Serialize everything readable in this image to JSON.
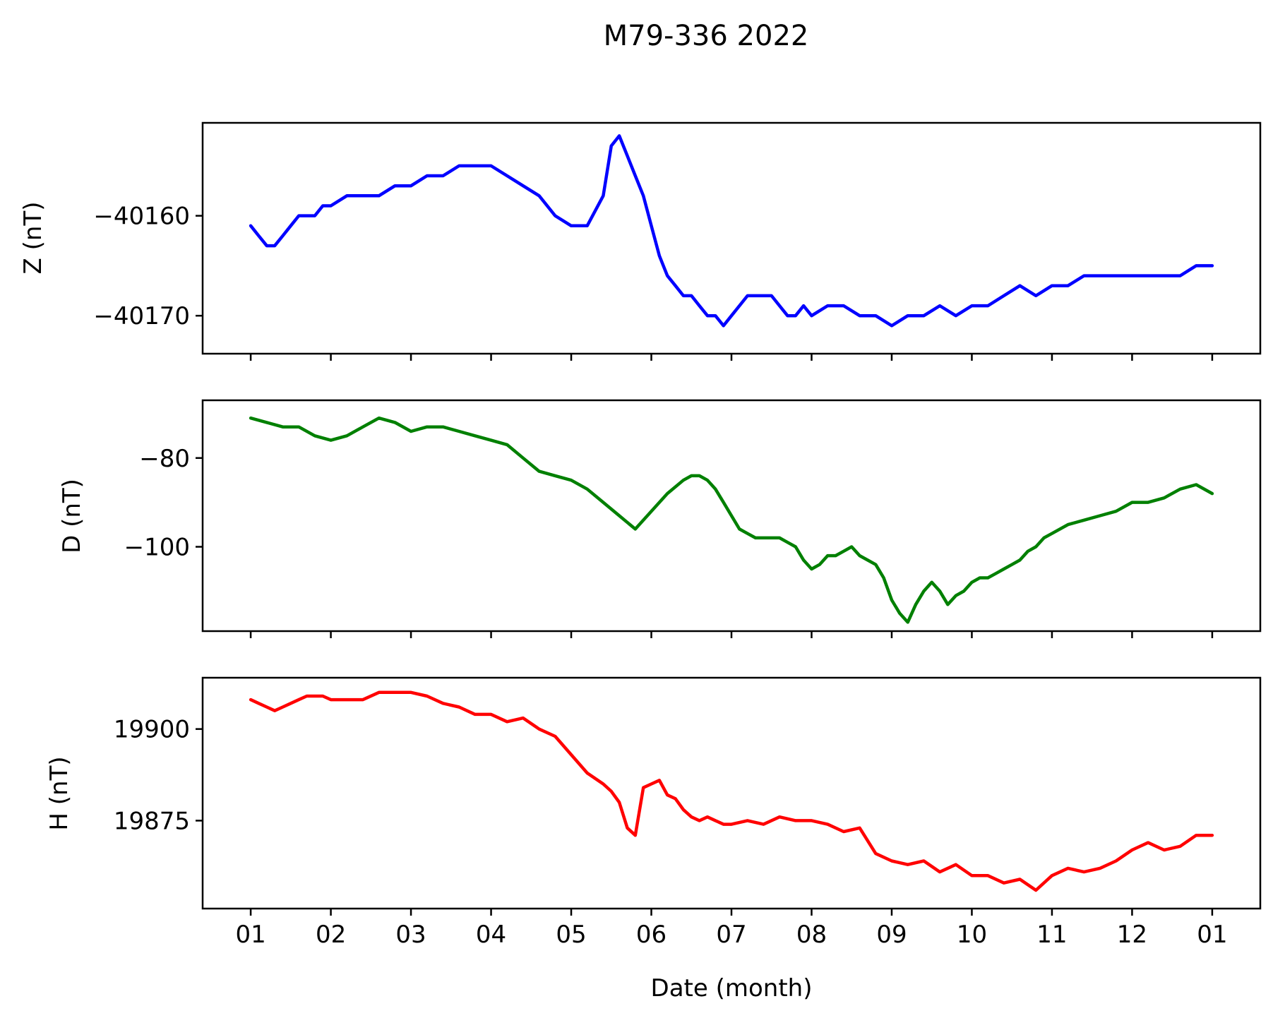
{
  "chart_data": {
    "type": "line",
    "title": "M79-336 2022",
    "xlabel": "Date (month)",
    "x_tick_labels": [
      "01",
      "02",
      "03",
      "04",
      "05",
      "06",
      "07",
      "08",
      "09",
      "10",
      "11",
      "12",
      "01"
    ],
    "x_tick_months": [
      0,
      1,
      2,
      3,
      4,
      5,
      6,
      7,
      8,
      9,
      10,
      11,
      12
    ],
    "xlim": [
      -0.6,
      12.6
    ],
    "grid": false,
    "legend": "none",
    "panels": [
      {
        "ylabel": "Z (nT)",
        "color": "#0000ff",
        "ylim": [
          -40173.8,
          -40150.7
        ],
        "y_ticks": [
          -40160,
          -40170
        ],
        "y_tick_labels": [
          "−40160",
          "−40170"
        ],
        "x": [
          0.0,
          0.1,
          0.2,
          0.3,
          0.4,
          0.5,
          0.6,
          0.7,
          0.8,
          0.9,
          1.0,
          1.2,
          1.4,
          1.6,
          1.8,
          2.0,
          2.2,
          2.4,
          2.6,
          2.8,
          3.0,
          3.2,
          3.4,
          3.6,
          3.8,
          4.0,
          4.2,
          4.4,
          4.5,
          4.6,
          4.7,
          4.8,
          4.9,
          5.0,
          5.1,
          5.2,
          5.3,
          5.4,
          5.5,
          5.6,
          5.7,
          5.8,
          5.9,
          6.0,
          6.1,
          6.2,
          6.3,
          6.4,
          6.5,
          6.6,
          6.7,
          6.8,
          6.9,
          7.0,
          7.2,
          7.4,
          7.6,
          7.8,
          8.0,
          8.2,
          8.4,
          8.6,
          8.8,
          9.0,
          9.2,
          9.4,
          9.6,
          9.8,
          10.0,
          10.2,
          10.4,
          10.6,
          10.8,
          11.0,
          11.2,
          11.4,
          11.6,
          11.8,
          12.0
        ],
        "y": [
          -40161,
          -40162,
          -40163,
          -40163,
          -40162,
          -40161,
          -40160,
          -40160,
          -40160,
          -40159,
          -40159,
          -40158,
          -40158,
          -40158,
          -40157,
          -40157,
          -40156,
          -40156,
          -40155,
          -40155,
          -40155,
          -40156,
          -40157,
          -40158,
          -40160,
          -40161,
          -40161,
          -40158,
          -40153,
          -40152,
          -40154,
          -40156,
          -40158,
          -40161,
          -40164,
          -40166,
          -40167,
          -40168,
          -40168,
          -40169,
          -40170,
          -40170,
          -40171,
          -40170,
          -40169,
          -40168,
          -40168,
          -40168,
          -40168,
          -40169,
          -40170,
          -40170,
          -40169,
          -40170,
          -40169,
          -40169,
          -40170,
          -40170,
          -40171,
          -40170,
          -40170,
          -40169,
          -40170,
          -40169,
          -40169,
          -40168,
          -40167,
          -40168,
          -40167,
          -40167,
          -40166,
          -40166,
          -40166,
          -40166,
          -40166,
          -40166,
          -40166,
          -40165,
          -40165
        ]
      },
      {
        "ylabel": "D (nT)",
        "color": "#008000",
        "ylim": [
          -119,
          -67
        ],
        "y_ticks": [
          -80,
          -100
        ],
        "y_tick_labels": [
          "−80",
          "−100"
        ],
        "x": [
          0.0,
          0.2,
          0.4,
          0.6,
          0.8,
          1.0,
          1.2,
          1.4,
          1.6,
          1.8,
          2.0,
          2.2,
          2.4,
          2.6,
          2.8,
          3.0,
          3.2,
          3.4,
          3.6,
          3.8,
          4.0,
          4.2,
          4.4,
          4.6,
          4.8,
          5.0,
          5.2,
          5.4,
          5.5,
          5.6,
          5.7,
          5.8,
          5.9,
          6.0,
          6.1,
          6.2,
          6.3,
          6.4,
          6.5,
          6.6,
          6.7,
          6.8,
          6.9,
          7.0,
          7.1,
          7.2,
          7.3,
          7.4,
          7.5,
          7.6,
          7.7,
          7.8,
          7.9,
          8.0,
          8.1,
          8.2,
          8.3,
          8.4,
          8.5,
          8.6,
          8.7,
          8.8,
          8.9,
          9.0,
          9.1,
          9.2,
          9.3,
          9.4,
          9.5,
          9.6,
          9.7,
          9.8,
          9.9,
          10.0,
          10.2,
          10.4,
          10.6,
          10.8,
          11.0,
          11.2,
          11.4,
          11.6,
          11.8,
          12.0
        ],
        "y": [
          -71,
          -72,
          -73,
          -73,
          -75,
          -76,
          -75,
          -73,
          -71,
          -72,
          -74,
          -73,
          -73,
          -74,
          -75,
          -76,
          -77,
          -80,
          -83,
          -84,
          -85,
          -87,
          -90,
          -93,
          -96,
          -92,
          -88,
          -85,
          -84,
          -84,
          -85,
          -87,
          -90,
          -93,
          -96,
          -97,
          -98,
          -98,
          -98,
          -98,
          -99,
          -100,
          -103,
          -105,
          -104,
          -102,
          -102,
          -101,
          -100,
          -102,
          -103,
          -104,
          -107,
          -112,
          -115,
          -117,
          -113,
          -110,
          -108,
          -110,
          -113,
          -111,
          -110,
          -108,
          -107,
          -107,
          -106,
          -105,
          -104,
          -103,
          -101,
          -100,
          -98,
          -97,
          -95,
          -94,
          -93,
          -92,
          -90,
          -90,
          -89,
          -87,
          -86,
          -88
        ]
      },
      {
        "ylabel": "H (nT)",
        "color": "#ff0000",
        "ylim": [
          19851.0,
          19914.0
        ],
        "y_ticks": [
          19900,
          19875
        ],
        "y_tick_labels": [
          "19900",
          "19875"
        ],
        "x": [
          0.0,
          0.1,
          0.2,
          0.3,
          0.4,
          0.5,
          0.6,
          0.7,
          0.8,
          0.9,
          1.0,
          1.2,
          1.4,
          1.6,
          1.8,
          2.0,
          2.2,
          2.4,
          2.6,
          2.8,
          3.0,
          3.2,
          3.4,
          3.6,
          3.8,
          4.0,
          4.2,
          4.4,
          4.5,
          4.6,
          4.7,
          4.8,
          4.9,
          5.0,
          5.1,
          5.2,
          5.3,
          5.4,
          5.5,
          5.6,
          5.7,
          5.8,
          5.9,
          6.0,
          6.2,
          6.4,
          6.6,
          6.8,
          7.0,
          7.2,
          7.4,
          7.6,
          7.8,
          8.0,
          8.2,
          8.4,
          8.6,
          8.8,
          9.0,
          9.2,
          9.4,
          9.6,
          9.8,
          10.0,
          10.2,
          10.4,
          10.6,
          10.8,
          11.0,
          11.2,
          11.4,
          11.6,
          11.8,
          12.0
        ],
        "y": [
          19908,
          19907,
          19906,
          19905,
          19906,
          19907,
          19908,
          19909,
          19909,
          19909,
          19908,
          19908,
          19908,
          19910,
          19910,
          19910,
          19909,
          19907,
          19906,
          19904,
          19904,
          19902,
          19903,
          19900,
          19898,
          19893,
          19888,
          19885,
          19883,
          19880,
          19873,
          19871,
          19884,
          19885,
          19886,
          19882,
          19881,
          19878,
          19876,
          19875,
          19876,
          19875,
          19874,
          19874,
          19875,
          19874,
          19876,
          19875,
          19875,
          19874,
          19872,
          19873,
          19866,
          19864,
          19863,
          19864,
          19861,
          19863,
          19860,
          19860,
          19858,
          19859,
          19856,
          19860,
          19862,
          19861,
          19862,
          19864,
          19867,
          19869,
          19867,
          19868,
          19871,
          19871
        ]
      }
    ]
  }
}
